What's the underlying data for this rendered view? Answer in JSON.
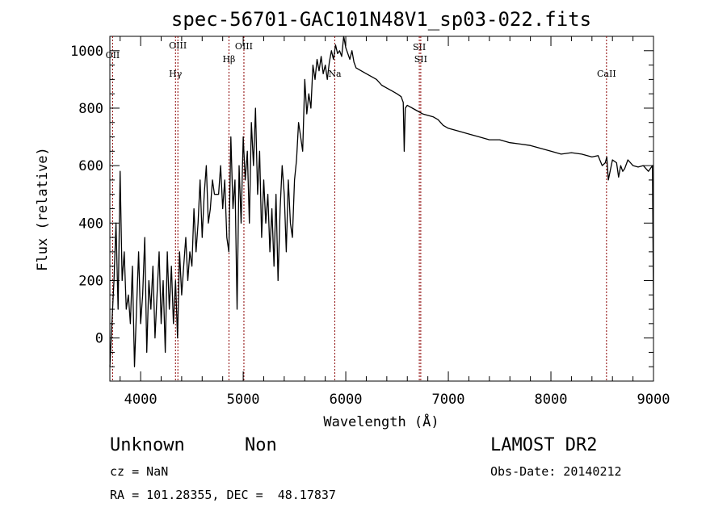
{
  "chart_data": {
    "type": "line",
    "title": "spec-56701-GAC101N48V1_sp03-022.fits",
    "xlabel": "Wavelength (Å)",
    "ylabel": "Flux (relative)",
    "xlim": [
      3700,
      9000
    ],
    "ylim": [
      -150,
      1050
    ],
    "xticks": [
      4000,
      5000,
      6000,
      7000,
      8000,
      9000
    ],
    "yticks": [
      0,
      200,
      400,
      600,
      800,
      1000
    ],
    "xtick_labels": [
      "4000",
      "5000",
      "6000",
      "7000",
      "8000",
      "9000"
    ],
    "ytick_labels": [
      "0",
      "200",
      "400",
      "600",
      "800",
      "1000"
    ],
    "grid": false,
    "series": [
      {
        "x": [
          3700,
          3720,
          3740,
          3760,
          3780,
          3800,
          3820,
          3840,
          3860,
          3880,
          3900,
          3920,
          3940,
          3960,
          3980,
          4000,
          4020,
          4040,
          4060,
          4080,
          4100,
          4120,
          4140,
          4160,
          4180,
          4200,
          4220,
          4240,
          4260,
          4280,
          4300,
          4320,
          4340,
          4360,
          4380,
          4400,
          4420,
          4440,
          4460,
          4480,
          4500,
          4520,
          4540,
          4560,
          4580,
          4600,
          4620,
          4640,
          4660,
          4680,
          4700,
          4720,
          4740,
          4760,
          4780,
          4800,
          4820,
          4840,
          4860,
          4880,
          4900,
          4920,
          4940,
          4960,
          4980,
          5000,
          5020,
          5040,
          5060,
          5080,
          5100,
          5120,
          5140,
          5160,
          5180,
          5200,
          5220,
          5240,
          5260,
          5280,
          5300,
          5320,
          5340,
          5360,
          5380,
          5400,
          5420,
          5440,
          5460,
          5480,
          5500,
          5520,
          5540,
          5560,
          5580,
          5600,
          5620,
          5640,
          5660,
          5680,
          5700,
          5720,
          5740,
          5760,
          5780,
          5800,
          5820,
          5840,
          5860,
          5880,
          5900,
          5920,
          5940,
          5960,
          5980,
          6000,
          6020,
          6040,
          6060,
          6080,
          6100,
          6150,
          6200,
          6250,
          6300,
          6350,
          6400,
          6450,
          6500,
          6540,
          6560,
          6570,
          6580,
          6600,
          6650,
          6700,
          6750,
          6800,
          6850,
          6900,
          6950,
          7000,
          7100,
          7200,
          7300,
          7400,
          7500,
          7600,
          7700,
          7800,
          7900,
          8000,
          8100,
          8200,
          8300,
          8400,
          8460,
          8500,
          8530,
          8545,
          8560,
          8600,
          8640,
          8660,
          8680,
          8700,
          8720,
          8750,
          8800,
          8850,
          8900,
          8950,
          8990,
          9000
        ],
        "y": [
          -100,
          50,
          200,
          400,
          100,
          580,
          200,
          300,
          100,
          150,
          50,
          250,
          -100,
          100,
          300,
          50,
          150,
          350,
          -50,
          200,
          100,
          250,
          0,
          150,
          300,
          50,
          200,
          -50,
          300,
          100,
          250,
          50,
          200,
          0,
          300,
          150,
          250,
          350,
          200,
          300,
          250,
          450,
          300,
          400,
          550,
          350,
          500,
          600,
          400,
          450,
          550,
          500,
          500,
          500,
          600,
          450,
          550,
          350,
          300,
          700,
          450,
          550,
          100,
          600,
          400,
          700,
          550,
          650,
          400,
          750,
          600,
          800,
          500,
          650,
          350,
          550,
          400,
          500,
          300,
          450,
          250,
          500,
          200,
          450,
          600,
          500,
          300,
          550,
          400,
          350,
          550,
          620,
          750,
          700,
          650,
          900,
          780,
          850,
          800,
          950,
          900,
          970,
          930,
          980,
          920,
          950,
          900,
          960,
          1000,
          970,
          1020,
          990,
          1000,
          980,
          1050,
          1010,
          990,
          970,
          1000,
          960,
          940,
          930,
          920,
          910,
          900,
          880,
          870,
          860,
          850,
          840,
          820,
          650,
          800,
          810,
          800,
          790,
          780,
          775,
          770,
          760,
          740,
          730,
          720,
          710,
          700,
          690,
          690,
          680,
          675,
          670,
          660,
          650,
          640,
          645,
          640,
          630,
          635,
          600,
          610,
          630,
          550,
          620,
          610,
          560,
          600,
          580,
          590,
          620,
          600,
          595,
          600,
          580,
          600,
          100
        ]
      }
    ],
    "lines": [
      {
        "label": "OII",
        "x": 3727
      },
      {
        "label": "Hγ",
        "x": 4340
      },
      {
        "label": "OIII",
        "x": 4363
      },
      {
        "label": "Hβ",
        "x": 4861
      },
      {
        "label": "OIII",
        "x": 5007
      },
      {
        "label": "Na",
        "x": 5893
      },
      {
        "label": "SII",
        "x": 6717
      },
      {
        "label": "SII",
        "x": 6731
      },
      {
        "label": "CaII",
        "x": 8542
      }
    ],
    "line_color": "#8b0000"
  },
  "info": {
    "class": "Unknown",
    "subclass": "Non",
    "survey": "LAMOST DR2",
    "cz": "cz = NaN",
    "obs_date": "Obs-Date: 20140212",
    "coords": "RA = 101.28355, DEC =  48.17837"
  }
}
